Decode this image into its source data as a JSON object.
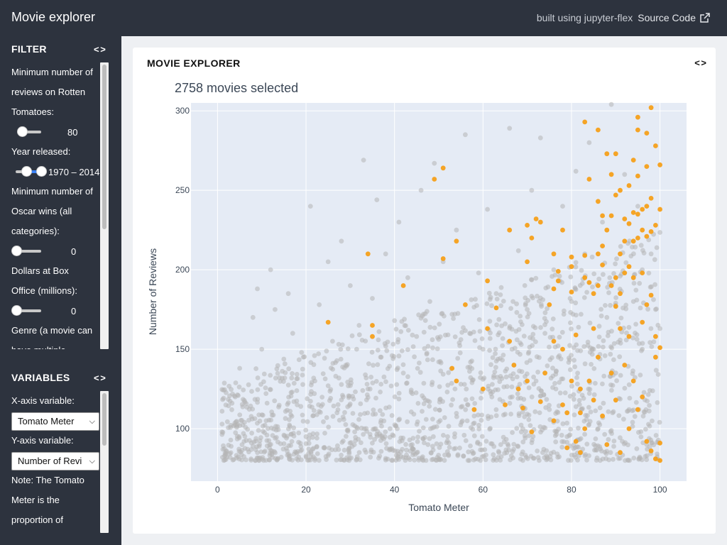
{
  "header": {
    "title": "Movie explorer",
    "built_with": "built using jupyter-flex",
    "source_label": "Source Code"
  },
  "sidebar": {
    "filter": {
      "title": "FILTER",
      "reviews_label_lines": [
        "Minimum number of",
        "reviews on Rotten",
        "Tomatoes:"
      ],
      "reviews_value": "80",
      "year_label": "Year released:",
      "year_value": "1970 – 2014",
      "oscars_label_lines": [
        "Minimum number of",
        "Oscar wins (all",
        "categories):"
      ],
      "oscars_value": "0",
      "boxoffice_label_lines": [
        "Dollars at Box",
        "Office (millions):"
      ],
      "boxoffice_value": "0",
      "genre_label_lines": [
        "Genre (a movie can",
        "have multiple"
      ]
    },
    "variables": {
      "title": "VARIABLES",
      "x_label": "X-axis variable:",
      "x_value": "Tomato Meter",
      "y_label": "Y-axis variable:",
      "y_value": "Number of Revi",
      "note_lines": [
        "Note: The Tomato",
        "Meter is the",
        "proportion of"
      ]
    }
  },
  "panel": {
    "title": "MOVIE EXPLORER"
  },
  "colors": {
    "highlight": "#f5a01a",
    "base": "#b4b4b4",
    "plot_bg": "#e5ebf5"
  },
  "chart_data": {
    "type": "scatter",
    "title": "2758 movies selected",
    "xlabel": "Tomato Meter",
    "ylabel": "Number of Reviews",
    "xlim": [
      -6,
      106
    ],
    "ylim": [
      67,
      305
    ],
    "xticks": [
      0,
      20,
      40,
      60,
      80,
      100
    ],
    "yticks": [
      100,
      150,
      200,
      250,
      300
    ],
    "grid": true,
    "legend": "none",
    "series": [
      {
        "color": "#b4b4b4",
        "note": "background point cloud (~2700 points)",
        "points": [
          [
            2,
            86
          ],
          [
            4,
            120
          ],
          [
            5,
            138
          ],
          [
            6,
            92
          ],
          [
            8,
            170
          ],
          [
            9,
            188
          ],
          [
            10,
            150
          ],
          [
            11,
            105
          ],
          [
            12,
            200
          ],
          [
            13,
            175
          ],
          [
            14,
            132
          ],
          [
            15,
            96
          ],
          [
            16,
            185
          ],
          [
            17,
            160
          ],
          [
            18,
            115
          ],
          [
            19,
            148
          ],
          [
            20,
            95
          ],
          [
            21,
            240
          ],
          [
            22,
            130
          ],
          [
            23,
            178
          ],
          [
            24,
            88
          ],
          [
            25,
            205
          ],
          [
            26,
            155
          ],
          [
            27,
            110
          ],
          [
            28,
            218
          ],
          [
            29,
            140
          ],
          [
            30,
            190
          ],
          [
            31,
            98
          ],
          [
            32,
            165
          ],
          [
            33,
            269
          ],
          [
            34,
            125
          ],
          [
            35,
            182
          ],
          [
            36,
            244
          ],
          [
            37,
            145
          ],
          [
            38,
            210
          ],
          [
            39,
            100
          ],
          [
            40,
            168
          ],
          [
            41,
            230
          ],
          [
            42,
            135
          ],
          [
            43,
            195
          ],
          [
            44,
            90
          ],
          [
            45,
            158
          ],
          [
            46,
            250
          ],
          [
            47,
            118
          ],
          [
            48,
            180
          ],
          [
            49,
            267
          ],
          [
            50,
            142
          ],
          [
            51,
            205
          ],
          [
            52,
            95
          ],
          [
            53,
            172
          ],
          [
            54,
            225
          ],
          [
            55,
            128
          ],
          [
            56,
            285
          ],
          [
            57,
            160
          ],
          [
            58,
            108
          ],
          [
            59,
            198
          ],
          [
            60,
            150
          ],
          [
            61,
            238
          ],
          [
            62,
            120
          ],
          [
            63,
            185
          ],
          [
            64,
            90
          ],
          [
            65,
            166
          ],
          [
            66,
            289
          ],
          [
            67,
            140
          ],
          [
            68,
            212
          ],
          [
            69,
            100
          ],
          [
            70,
            175
          ],
          [
            71,
            250
          ],
          [
            72,
            130
          ],
          [
            73,
            283
          ],
          [
            74,
            160
          ],
          [
            75,
            112
          ],
          [
            76,
            200
          ],
          [
            77,
            145
          ],
          [
            78,
            240
          ],
          [
            79,
            95
          ],
          [
            80,
            180
          ],
          [
            81,
            262
          ],
          [
            82,
            125
          ],
          [
            83,
            210
          ],
          [
            84,
            280
          ],
          [
            85,
            150
          ],
          [
            86,
            100
          ],
          [
            87,
            230
          ],
          [
            88,
            170
          ],
          [
            89,
            304
          ],
          [
            90,
            135
          ],
          [
            91,
            196
          ],
          [
            92,
            260
          ],
          [
            93,
            112
          ],
          [
            94,
            180
          ],
          [
            95,
            240
          ],
          [
            96,
            150
          ],
          [
            97,
            90
          ],
          [
            98,
            210
          ],
          [
            99,
            175
          ],
          [
            100,
            163
          ]
        ]
      },
      {
        "color": "#f5a01a",
        "name": "",
        "points": [
          [
            25,
            167
          ],
          [
            34,
            210
          ],
          [
            35,
            165
          ],
          [
            35,
            158
          ],
          [
            42,
            190
          ],
          [
            49,
            257
          ],
          [
            51,
            264
          ],
          [
            51,
            207
          ],
          [
            54,
            218
          ],
          [
            56,
            178
          ],
          [
            61,
            193
          ],
          [
            61,
            163
          ],
          [
            63,
            176
          ],
          [
            66,
            225
          ],
          [
            66,
            155
          ],
          [
            68,
            125
          ],
          [
            69,
            113
          ],
          [
            70,
            228
          ],
          [
            70,
            205
          ],
          [
            71,
            220
          ],
          [
            72,
            232
          ],
          [
            73,
            230
          ],
          [
            75,
            178
          ],
          [
            76,
            210
          ],
          [
            76,
            188
          ],
          [
            76,
            155
          ],
          [
            77,
            199
          ],
          [
            77,
            193
          ],
          [
            78,
            225
          ],
          [
            78,
            150
          ],
          [
            79,
            110
          ],
          [
            80,
            208
          ],
          [
            80,
            202
          ],
          [
            80,
            186
          ],
          [
            81,
            159
          ],
          [
            81,
            92
          ],
          [
            82,
            125
          ],
          [
            82,
            110
          ],
          [
            83,
            209
          ],
          [
            83,
            195
          ],
          [
            83,
            293
          ],
          [
            84,
            257
          ],
          [
            84,
            192
          ],
          [
            85,
            185
          ],
          [
            85,
            163
          ],
          [
            86,
            288
          ],
          [
            86,
            243
          ],
          [
            86,
            210
          ],
          [
            86,
            190
          ],
          [
            87,
            234
          ],
          [
            87,
            215
          ],
          [
            87,
            203
          ],
          [
            88,
            273
          ],
          [
            88,
            225
          ],
          [
            89,
            260
          ],
          [
            89,
            234
          ],
          [
            89,
            190
          ],
          [
            90,
            273
          ],
          [
            90,
            247
          ],
          [
            90,
            195
          ],
          [
            90,
            177
          ],
          [
            91,
            250
          ],
          [
            91,
            210
          ],
          [
            91,
            185
          ],
          [
            91,
            163
          ],
          [
            92,
            232
          ],
          [
            92,
            218
          ],
          [
            92,
            198
          ],
          [
            93,
            253
          ],
          [
            93,
            229
          ],
          [
            93,
            202
          ],
          [
            93,
            158
          ],
          [
            94,
            269
          ],
          [
            94,
            236
          ],
          [
            94,
            218
          ],
          [
            94,
            195
          ],
          [
            95,
            296
          ],
          [
            95,
            288
          ],
          [
            95,
            259
          ],
          [
            95,
            235
          ],
          [
            95,
            220
          ],
          [
            96,
            238
          ],
          [
            96,
            225
          ],
          [
            96,
            198
          ],
          [
            96,
            167
          ],
          [
            97,
            286
          ],
          [
            97,
            265
          ],
          [
            97,
            240
          ],
          [
            97,
            221
          ],
          [
            97,
            178
          ],
          [
            98,
            302
          ],
          [
            98,
            245
          ],
          [
            98,
            224
          ],
          [
            98,
            184
          ],
          [
            99,
            278
          ],
          [
            99,
            228
          ],
          [
            99,
            158
          ],
          [
            99,
            145
          ],
          [
            100,
            266
          ],
          [
            100,
            238
          ],
          [
            100,
            151
          ],
          [
            100,
            91
          ],
          [
            98,
            86
          ],
          [
            99,
            81
          ],
          [
            100,
            80
          ],
          [
            97,
            92
          ],
          [
            96,
            120
          ],
          [
            95,
            112
          ],
          [
            94,
            130
          ],
          [
            93,
            100
          ],
          [
            92,
            140
          ],
          [
            91,
            85
          ],
          [
            90,
            118
          ],
          [
            89,
            135
          ],
          [
            88,
            90
          ],
          [
            87,
            108
          ],
          [
            86,
            145
          ],
          [
            85,
            118
          ],
          [
            84,
            130
          ],
          [
            83,
            100
          ],
          [
            82,
            85
          ],
          [
            80,
            130
          ],
          [
            79,
            88
          ],
          [
            78,
            115
          ],
          [
            76,
            105
          ],
          [
            74,
            135
          ],
          [
            73,
            117
          ],
          [
            71,
            98
          ],
          [
            70,
            130
          ],
          [
            67,
            140
          ],
          [
            65,
            115
          ],
          [
            60,
            125
          ],
          [
            58,
            112
          ],
          [
            54,
            130
          ],
          [
            53,
            138
          ]
        ]
      }
    ]
  }
}
